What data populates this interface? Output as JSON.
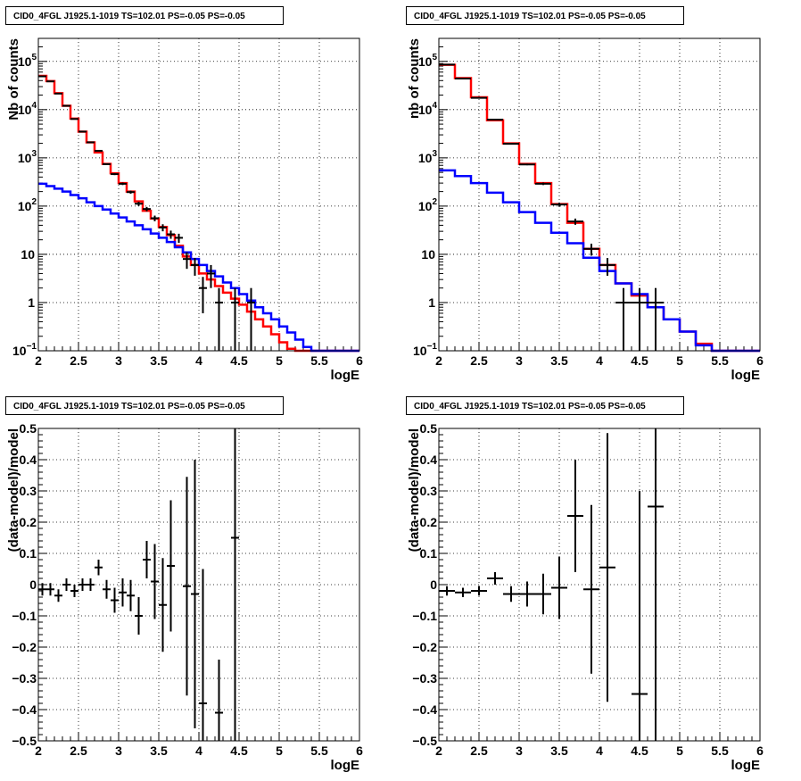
{
  "chart_data": [
    {
      "type": "line",
      "title": "CID0_4FGL J1925.1-1019 TS=102.01 PS=-0.05 PS=-0.05",
      "xlabel": "logE",
      "ylabel": "Nb of counts",
      "xlim": [
        2,
        6
      ],
      "ylim": [
        0.1,
        300000
      ],
      "log_y": true,
      "grid": true,
      "x_ticks": [
        "2",
        "2.5",
        "3",
        "3.5",
        "4",
        "4.5",
        "5",
        "5.5",
        "6"
      ],
      "y_ticks": [
        {
          "v": 0.1,
          "label": "10",
          "sup": "−1"
        },
        {
          "v": 1,
          "label": "1",
          "sup": ""
        },
        {
          "v": 10,
          "label": "10",
          "sup": ""
        },
        {
          "v": 100,
          "label": "10",
          "sup": "2"
        },
        {
          "v": 1000,
          "label": "10",
          "sup": "3"
        },
        {
          "v": 10000,
          "label": "10",
          "sup": "4"
        },
        {
          "v": 100000,
          "label": "10",
          "sup": "5"
        }
      ],
      "bin_width": 0.1,
      "series": [
        {
          "color": "#ff0000",
          "style": "step",
          "values": [
            50000,
            39000,
            22000,
            12000,
            6500,
            3500,
            2100,
            1300,
            750,
            480,
            300,
            200,
            125,
            80,
            55,
            37,
            25,
            15,
            9,
            6,
            4,
            3,
            2.2,
            1.6,
            1.2,
            0.9,
            0.65,
            0.45,
            0.32,
            0.22,
            0.15,
            0.11,
            0.1,
            0.1,
            0.1,
            0.1,
            0.1,
            0.1,
            0.1,
            0.1
          ]
        },
        {
          "color": "#0000ff",
          "style": "step",
          "values": [
            290,
            260,
            230,
            200,
            170,
            145,
            120,
            100,
            85,
            70,
            58,
            48,
            40,
            33,
            27,
            22,
            18,
            14,
            11,
            8,
            6,
            4.5,
            3.5,
            2.6,
            2,
            1.5,
            1.1,
            0.8,
            0.6,
            0.45,
            0.32,
            0.24,
            0.17,
            0.12,
            0.1,
            0.1,
            0.1,
            0.1,
            0.1,
            0.1
          ]
        },
        {
          "color": "#000000",
          "style": "errorbar",
          "points": [
            {
              "x": 2.05,
              "y": 49000,
              "e": 220
            },
            {
              "x": 2.15,
              "y": 38500,
              "e": 200
            },
            {
              "x": 2.25,
              "y": 21500,
              "e": 150
            },
            {
              "x": 2.35,
              "y": 12000,
              "e": 110
            },
            {
              "x": 2.45,
              "y": 6400,
              "e": 80
            },
            {
              "x": 2.55,
              "y": 3500,
              "e": 60
            },
            {
              "x": 2.65,
              "y": 2100,
              "e": 46
            },
            {
              "x": 2.75,
              "y": 1400,
              "e": 37
            },
            {
              "x": 2.85,
              "y": 740,
              "e": 27
            },
            {
              "x": 2.95,
              "y": 460,
              "e": 21
            },
            {
              "x": 3.05,
              "y": 290,
              "e": 17
            },
            {
              "x": 3.15,
              "y": 195,
              "e": 14
            },
            {
              "x": 3.25,
              "y": 112,
              "e": 11
            },
            {
              "x": 3.35,
              "y": 87,
              "e": 9
            },
            {
              "x": 3.45,
              "y": 56,
              "e": 7.5
            },
            {
              "x": 3.55,
              "y": 36,
              "e": 6
            },
            {
              "x": 3.65,
              "y": 26,
              "e": 5
            },
            {
              "x": 3.75,
              "y": 22,
              "e": 4.7
            },
            {
              "x": 3.85,
              "y": 8,
              "e": 3
            },
            {
              "x": 3.95,
              "y": 6,
              "e": 2.4
            },
            {
              "x": 4.05,
              "y": 2,
              "e": 1.4
            },
            {
              "x": 4.15,
              "y": 4,
              "e": 2
            },
            {
              "x": 4.25,
              "y": 1,
              "e": 1
            },
            {
              "x": 4.45,
              "y": 1,
              "e": 1
            },
            {
              "x": 4.65,
              "y": 1,
              "e": 1
            }
          ]
        }
      ]
    },
    {
      "type": "line",
      "title": "CID0_4FGL J1925.1-1019 TS=102.01 PS=-0.05 PS=-0.05",
      "xlabel": "logE",
      "ylabel": "nb of counts",
      "xlim": [
        2,
        6
      ],
      "ylim": [
        0.1,
        300000
      ],
      "log_y": true,
      "grid": true,
      "x_ticks": [
        "2",
        "2.5",
        "3",
        "3.5",
        "4",
        "4.5",
        "5",
        "5.5",
        "6"
      ],
      "y_ticks": [
        {
          "v": 0.1,
          "label": "10",
          "sup": "−1"
        },
        {
          "v": 1,
          "label": "1",
          "sup": ""
        },
        {
          "v": 10,
          "label": "10",
          "sup": ""
        },
        {
          "v": 100,
          "label": "10",
          "sup": "2"
        },
        {
          "v": 1000,
          "label": "10",
          "sup": "3"
        },
        {
          "v": 10000,
          "label": "10",
          "sup": "4"
        },
        {
          "v": 100000,
          "label": "10",
          "sup": "5"
        }
      ],
      "bin_width": 0.2,
      "series": [
        {
          "color": "#ff0000",
          "style": "step",
          "values": [
            85000,
            45000,
            18000,
            6000,
            2000,
            750,
            300,
            110,
            45,
            13,
            6,
            2.5,
            1.4,
            0.8,
            0.45,
            0.25,
            0.14,
            0.1,
            0.1,
            0.1
          ]
        },
        {
          "color": "#0000ff",
          "style": "step",
          "values": [
            550,
            420,
            300,
            190,
            120,
            75,
            45,
            28,
            17,
            8.5,
            4.5,
            2.5,
            1.5,
            0.8,
            0.45,
            0.25,
            0.13,
            0.1,
            0.1,
            0.1
          ]
        },
        {
          "color": "#000000",
          "style": "errorbar",
          "points": [
            {
              "x": 2.1,
              "y": 86000,
              "e": 300
            },
            {
              "x": 2.3,
              "y": 44000,
              "e": 210
            },
            {
              "x": 2.5,
              "y": 17500,
              "e": 130
            },
            {
              "x": 2.7,
              "y": 6200,
              "e": 80
            },
            {
              "x": 2.9,
              "y": 1950,
              "e": 45
            },
            {
              "x": 3.1,
              "y": 730,
              "e": 27
            },
            {
              "x": 3.3,
              "y": 290,
              "e": 17
            },
            {
              "x": 3.5,
              "y": 108,
              "e": 10
            },
            {
              "x": 3.7,
              "y": 48,
              "e": 7
            },
            {
              "x": 3.9,
              "y": 13,
              "e": 3.6
            },
            {
              "x": 4.1,
              "y": 6,
              "e": 2.4
            },
            {
              "x": 4.3,
              "y": 1,
              "e": 1
            },
            {
              "x": 4.5,
              "y": 1,
              "e": 1
            },
            {
              "x": 4.7,
              "y": 1,
              "e": 1
            }
          ]
        }
      ]
    },
    {
      "type": "scatter",
      "title": "CID0_4FGL J1925.1-1019 TS=102.01 PS=-0.05 PS=-0.05",
      "xlabel": "logE",
      "ylabel": "(data-model)/model",
      "xlim": [
        2,
        6
      ],
      "ylim": [
        -0.5,
        0.5
      ],
      "grid": true,
      "x_ticks": [
        "2",
        "2.5",
        "3",
        "3.5",
        "4",
        "4.5",
        "5",
        "5.5",
        "6"
      ],
      "y_ticks": [
        "−0.5",
        "−0.4",
        "−0.3",
        "−0.2",
        "−0.1",
        "0",
        "0.1",
        "0.2",
        "0.3",
        "0.4",
        "0.5"
      ],
      "y_tick_values": [
        -0.5,
        -0.4,
        -0.3,
        -0.2,
        -0.1,
        0,
        0.1,
        0.2,
        0.3,
        0.4,
        0.5
      ],
      "bin_width": 0.1,
      "points": [
        {
          "x": 2.05,
          "y": -0.015,
          "e": 0.02
        },
        {
          "x": 2.15,
          "y": -0.015,
          "e": 0.02
        },
        {
          "x": 2.25,
          "y": -0.035,
          "e": 0.02
        },
        {
          "x": 2.35,
          "y": 0.0,
          "e": 0.02
        },
        {
          "x": 2.45,
          "y": -0.02,
          "e": 0.02
        },
        {
          "x": 2.55,
          "y": 0.0,
          "e": 0.02
        },
        {
          "x": 2.65,
          "y": 0.0,
          "e": 0.02
        },
        {
          "x": 2.75,
          "y": 0.055,
          "e": 0.025
        },
        {
          "x": 2.85,
          "y": -0.015,
          "e": 0.03
        },
        {
          "x": 2.95,
          "y": -0.05,
          "e": 0.04
        },
        {
          "x": 3.05,
          "y": -0.025,
          "e": 0.045
        },
        {
          "x": 3.15,
          "y": -0.035,
          "e": 0.05
        },
        {
          "x": 3.25,
          "y": -0.1,
          "e": 0.06
        },
        {
          "x": 3.35,
          "y": 0.08,
          "e": 0.06
        },
        {
          "x": 3.45,
          "y": 0.01,
          "e": 0.12
        },
        {
          "x": 3.55,
          "y": -0.065,
          "e": 0.15
        },
        {
          "x": 3.65,
          "y": 0.06,
          "e": 0.21
        },
        {
          "x": 3.85,
          "y": -0.005,
          "e": 0.35
        },
        {
          "x": 3.95,
          "y": -0.03,
          "e": 0.43
        },
        {
          "x": 4.05,
          "y": -0.38,
          "e": 0.43
        },
        {
          "x": 4.25,
          "y": -0.41,
          "e": 0.17
        },
        {
          "x": 4.45,
          "y": 0.15,
          "e": 1.0
        }
      ]
    },
    {
      "type": "scatter",
      "title": "CID0_4FGL J1925.1-1019 TS=102.01 PS=-0.05 PS=-0.05",
      "xlabel": "logE",
      "ylabel": "(data-model)/model",
      "xlim": [
        2,
        6
      ],
      "ylim": [
        -0.5,
        0.5
      ],
      "grid": true,
      "x_ticks": [
        "2",
        "2.5",
        "3",
        "3.5",
        "4",
        "4.5",
        "5",
        "5.5",
        "6"
      ],
      "y_ticks": [
        "−0.5",
        "−0.4",
        "−0.3",
        "−0.2",
        "−0.1",
        "0",
        "0.1",
        "0.2",
        "0.3",
        "0.4",
        "0.5"
      ],
      "y_tick_values": [
        -0.5,
        -0.4,
        -0.3,
        -0.2,
        -0.1,
        0,
        0.1,
        0.2,
        0.3,
        0.4,
        0.5
      ],
      "bin_width": 0.2,
      "points": [
        {
          "x": 2.1,
          "y": -0.02,
          "e": 0.015
        },
        {
          "x": 2.3,
          "y": -0.025,
          "e": 0.015
        },
        {
          "x": 2.5,
          "y": -0.02,
          "e": 0.015
        },
        {
          "x": 2.7,
          "y": 0.02,
          "e": 0.02
        },
        {
          "x": 2.9,
          "y": -0.03,
          "e": 0.025
        },
        {
          "x": 3.1,
          "y": -0.03,
          "e": 0.04
        },
        {
          "x": 3.3,
          "y": -0.03,
          "e": 0.065
        },
        {
          "x": 3.5,
          "y": -0.01,
          "e": 0.1
        },
        {
          "x": 3.7,
          "y": 0.22,
          "e": 0.18
        },
        {
          "x": 3.9,
          "y": -0.015,
          "e": 0.27
        },
        {
          "x": 4.1,
          "y": 0.055,
          "e": 0.43
        },
        {
          "x": 4.5,
          "y": -0.35,
          "e": 0.65
        },
        {
          "x": 4.7,
          "y": 0.25,
          "e": 1.0
        }
      ]
    }
  ]
}
